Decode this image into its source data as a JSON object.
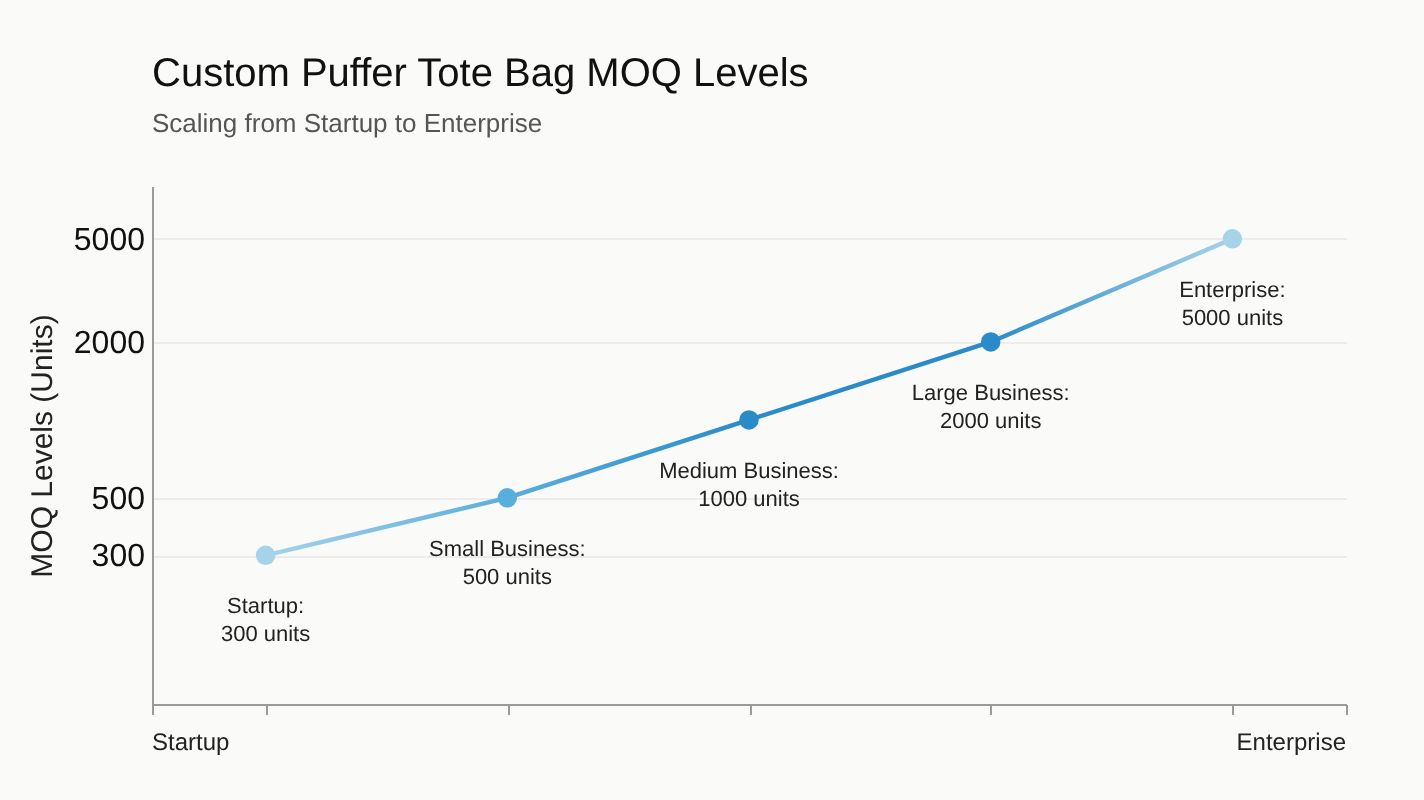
{
  "chart_data": {
    "type": "line",
    "title": "Custom Puffer Tote Bag MOQ Levels",
    "subtitle": "Scaling from Startup to Enterprise",
    "ylabel": "MOQ Levels (Units)",
    "categories": [
      null,
      null,
      null,
      null,
      null
    ],
    "series": [
      {
        "values": [
          300,
          500,
          1000,
          2000,
          5000
        ],
        "colors": [
          "#a6d3ea",
          "#5aaedc",
          "#2b8bc8",
          "#2b8bc8",
          "#a6d3ea"
        ],
        "value_labels": [
          "Startup:\n300 units",
          "Small Business:\n500 units",
          "Medium Business:\n1000 units",
          "Large Business:\n2000 units",
          "Enterprise:\n5000 units"
        ]
      }
    ],
    "log": true,
    "ylim": [
      80,
      8000
    ],
    "yticks": [
      300,
      500,
      2000,
      5000
    ],
    "grid": "y",
    "marker": "circle",
    "line_style": "solid",
    "tick_labels": "y",
    "annotations": [
      "Startup",
      "Enterprise"
    ]
  }
}
